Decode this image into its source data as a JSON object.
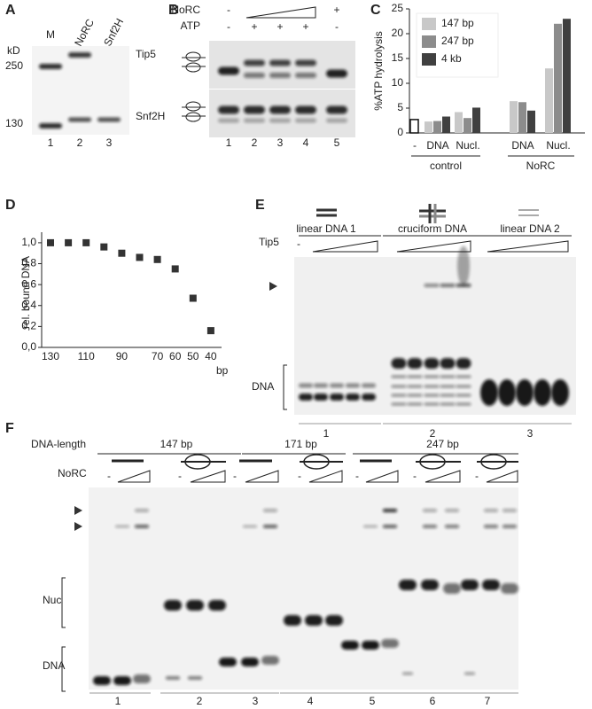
{
  "panel_labels": [
    "A",
    "B",
    "C",
    "D",
    "E",
    "F"
  ],
  "panel_a": {
    "kd": "kD",
    "lanes": [
      "M",
      "NoRC",
      "Snf2H"
    ],
    "markers": [
      "250",
      "130"
    ],
    "bands": [
      "Tip5",
      "Snf2H"
    ],
    "lane_numbers": [
      "1",
      "2",
      "3"
    ]
  },
  "panel_b": {
    "rows": [
      "NoRC",
      "ATP"
    ],
    "norc": [
      "-",
      "+"
    ],
    "atp": [
      "-",
      "+",
      "+",
      "+",
      "-"
    ],
    "lane_numbers": [
      "1",
      "2",
      "3",
      "4",
      "5"
    ]
  },
  "panel_e": {
    "samples": [
      "linear DNA 1",
      "cruciform DNA",
      "linear DNA 2"
    ],
    "protein": "Tip5",
    "minus": "-",
    "band": "DNA",
    "lane_numbers": [
      "1",
      "2",
      "3"
    ]
  },
  "panel_f": {
    "length_label": "DNA-length",
    "lengths": [
      "147 bp",
      "171 bp",
      "247 bp"
    ],
    "protein": "NoRC",
    "minus": [
      "-",
      "-",
      "-",
      "-",
      "-",
      "-",
      "-"
    ],
    "bands": [
      "Nuc",
      "DNA"
    ],
    "lane_numbers": [
      "1",
      "2",
      "3",
      "4",
      "5",
      "6",
      "7"
    ]
  },
  "chart_data": [
    {
      "type": "bar",
      "ylabel": "%ATP hydrolysis",
      "categories": [
        "-",
        "DNA",
        "Nucl.",
        "DNA",
        "Nucl."
      ],
      "groups": [
        "control",
        "NoRC"
      ],
      "series": [
        {
          "color": "#ffffff",
          "values": [
            2.7,
            null,
            null,
            null,
            null
          ]
        },
        {
          "name": "147 bp",
          "color": "#c8c8c8",
          "values": [
            null,
            2.3,
            4.2,
            6.4,
            13
          ]
        },
        {
          "name": "247 bp",
          "color": "#8c8c8c",
          "values": [
            null,
            2.4,
            3.0,
            6.2,
            22
          ]
        },
        {
          "name": "4 kb",
          "color": "#404040",
          "values": [
            null,
            3.3,
            5.1,
            4.5,
            23
          ]
        }
      ],
      "ylim": [
        0,
        25
      ],
      "yticks": [
        0,
        5,
        10,
        15,
        20,
        25
      ],
      "legend": "upper left"
    },
    {
      "type": "scatter",
      "ylabel": "rel. bound DNA",
      "xlabel": "bp",
      "categories": [
        "130",
        null,
        "110",
        null,
        "90",
        null,
        "70",
        "60",
        "50",
        "40"
      ],
      "values": [
        1.0,
        1.0,
        1.0,
        0.96,
        0.9,
        0.86,
        0.84,
        0.75,
        0.47,
        0.16
      ],
      "color": "#333333",
      "ylim": [
        0,
        1.05
      ],
      "yticks": [
        {
          "value": 0,
          "label": "0,0"
        },
        {
          "value": 0.2,
          "label": "0,2"
        },
        {
          "value": 0.4,
          "label": "0,4"
        },
        {
          "value": 0.6,
          "label": "0,6"
        },
        {
          "value": 0.8,
          "label": "0,8"
        },
        {
          "value": 1,
          "label": "1,0"
        }
      ]
    }
  ]
}
